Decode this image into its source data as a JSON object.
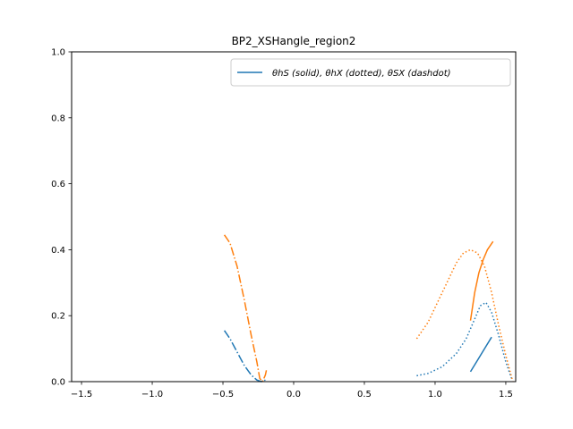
{
  "chart_data": {
    "type": "line",
    "title": "BP2_XSHangle_region2",
    "xlabel": "",
    "ylabel": "",
    "xlim": [
      -1.57,
      1.57
    ],
    "ylim": [
      0,
      1
    ],
    "xticks": [
      -1.5,
      -1.0,
      -0.5,
      0.0,
      0.5,
      1.0,
      1.5
    ],
    "xtick_labels": [
      "−1.5",
      "−1.0",
      "−0.5",
      "0.0",
      "0.5",
      "1.0",
      "1.5"
    ],
    "yticks": [
      0.0,
      0.2,
      0.4,
      0.6,
      0.8,
      1.0
    ],
    "ytick_labels": [
      "0.0",
      "0.2",
      "0.4",
      "0.6",
      "0.8",
      "1.0"
    ],
    "grid": false,
    "legend": {
      "position": "top-right",
      "entries": [
        {
          "label": "θhS (solid), θhX (dotted), θSX (dashdot)",
          "color": "#1f77b4"
        }
      ]
    },
    "series": [
      {
        "color": "#1f77b4",
        "dash": "solid",
        "x": [
          1.25,
          1.3,
          1.35,
          1.4
        ],
        "y": [
          0.03,
          0.065,
          0.1,
          0.135
        ]
      },
      {
        "color": "#1f77b4",
        "dash": "dotted",
        "x": [
          0.87,
          0.95,
          1.05,
          1.15,
          1.22,
          1.28,
          1.32,
          1.36,
          1.4,
          1.45,
          1.5,
          1.54
        ],
        "y": [
          0.018,
          0.025,
          0.045,
          0.085,
          0.13,
          0.19,
          0.23,
          0.24,
          0.21,
          0.14,
          0.06,
          0.01
        ]
      },
      {
        "color": "#1f77b4",
        "dash": "dashdot",
        "x": [
          -0.49,
          -0.45,
          -0.4,
          -0.35,
          -0.3,
          -0.26,
          -0.23,
          -0.2
        ],
        "y": [
          0.155,
          0.13,
          0.09,
          0.05,
          0.02,
          0.005,
          0.0,
          0.005
        ]
      },
      {
        "color": "#ff7f0e",
        "dash": "solid",
        "x": [
          1.25,
          1.28,
          1.31,
          1.34,
          1.37,
          1.41
        ],
        "y": [
          0.185,
          0.27,
          0.33,
          0.37,
          0.4,
          0.425
        ]
      },
      {
        "color": "#ff7f0e",
        "dash": "dotted",
        "x": [
          0.87,
          0.95,
          1.05,
          1.15,
          1.2,
          1.25,
          1.3,
          1.35,
          1.4,
          1.45,
          1.5,
          1.55
        ],
        "y": [
          0.13,
          0.18,
          0.27,
          0.36,
          0.39,
          0.4,
          0.39,
          0.35,
          0.27,
          0.17,
          0.08,
          0.0
        ]
      },
      {
        "color": "#ff7f0e",
        "dash": "dashdot",
        "x": [
          -0.49,
          -0.45,
          -0.4,
          -0.35,
          -0.3,
          -0.26,
          -0.24,
          -0.22,
          -0.2,
          -0.19
        ],
        "y": [
          0.445,
          0.42,
          0.35,
          0.25,
          0.14,
          0.06,
          0.01,
          0.0,
          0.02,
          0.04
        ]
      }
    ]
  }
}
